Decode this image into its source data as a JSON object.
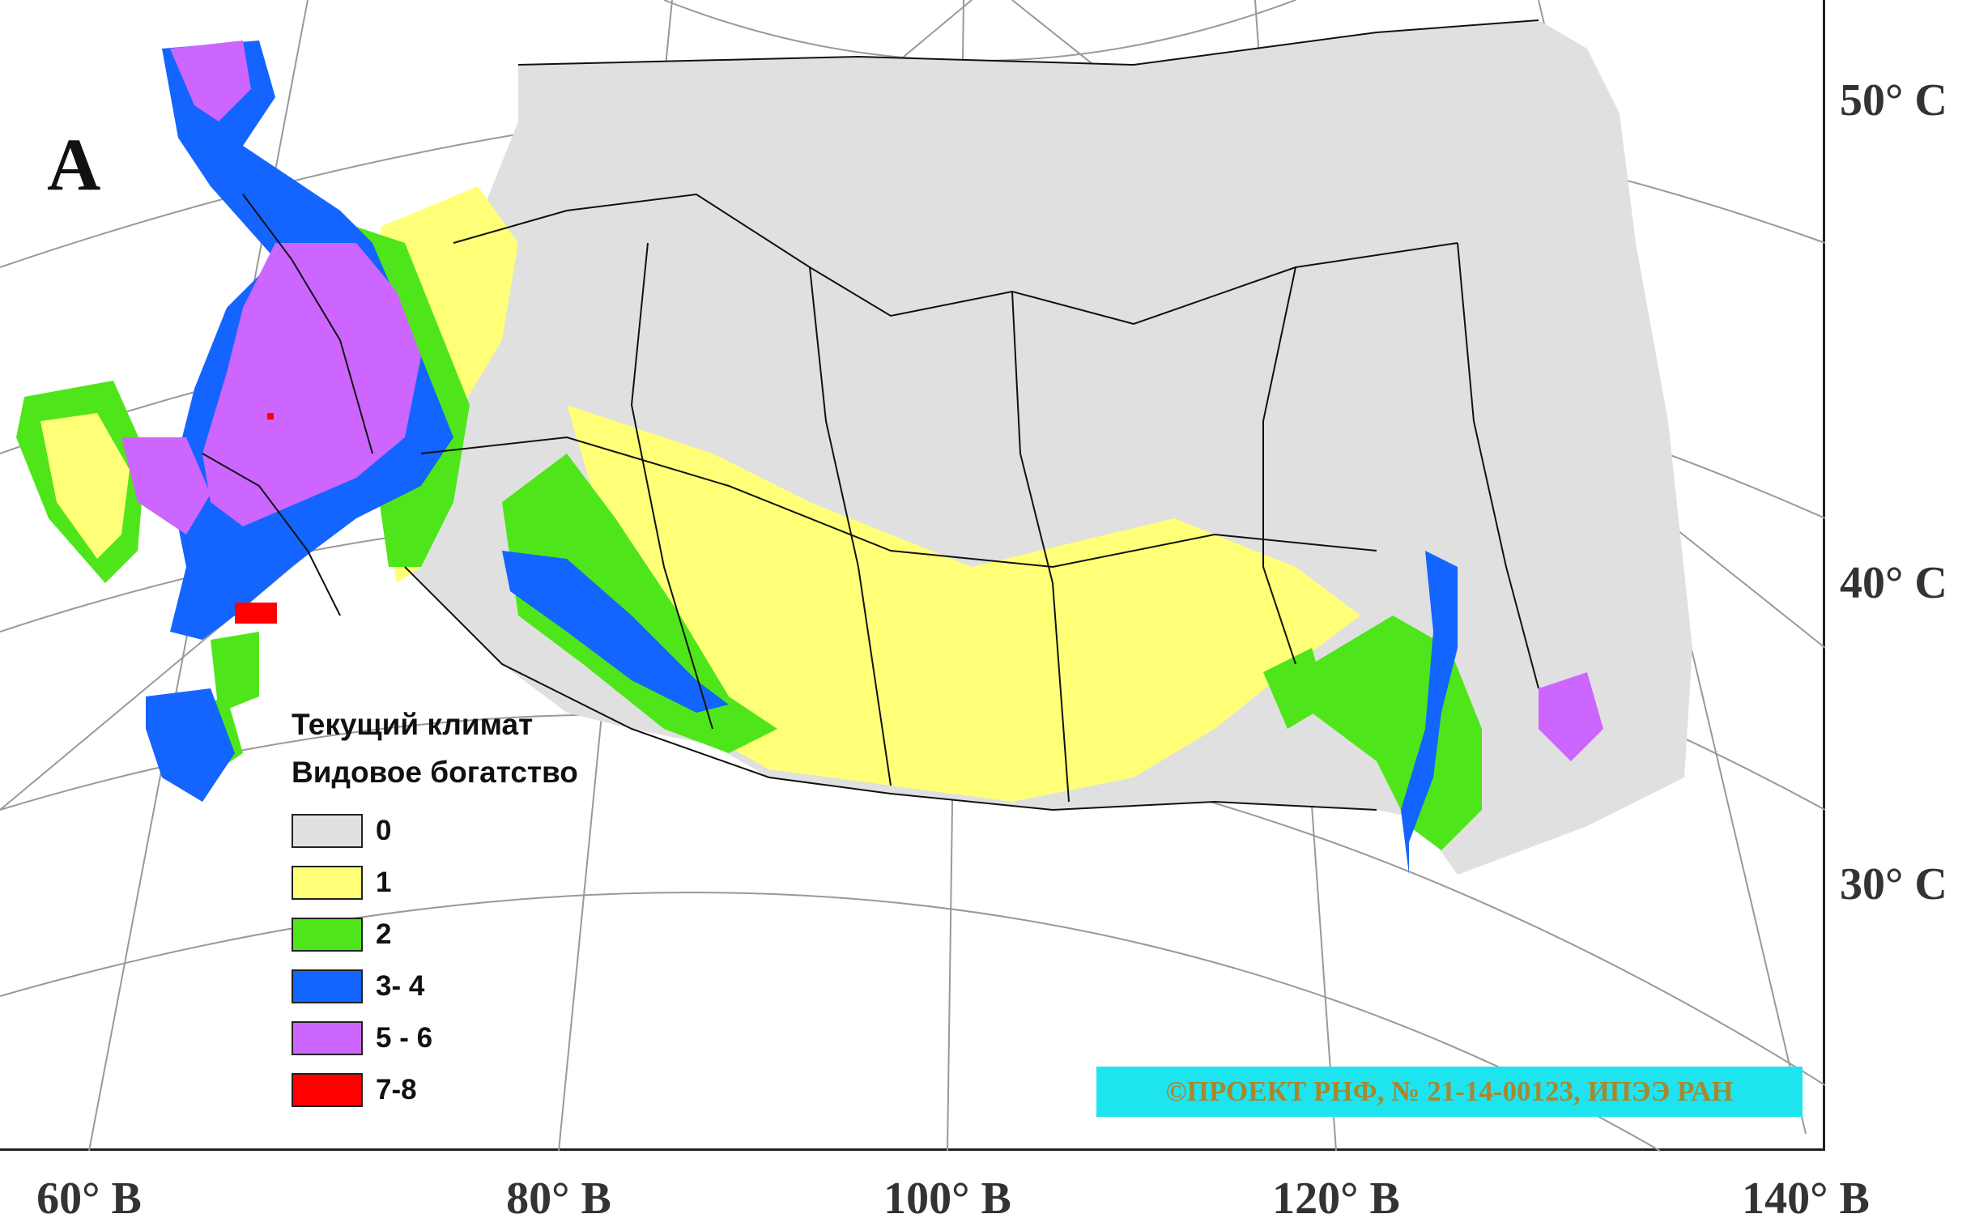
{
  "figure": {
    "panel_label": "А",
    "legend": {
      "title_line1": "Текущий климат",
      "title_line2": "Видовое богатство",
      "items": [
        {
          "label": "0",
          "color": "#e0e0e0"
        },
        {
          "label": "1",
          "color": "#ffff78"
        },
        {
          "label": "2",
          "color": "#4ee61a"
        },
        {
          "label": "3- 4",
          "color": "#1464ff"
        },
        {
          "label": "5 - 6",
          "color": "#cc66ff"
        },
        {
          "label": "7-8",
          "color": "#ff0000"
        }
      ]
    },
    "latitude_labels": [
      "50° С",
      "40° С",
      "30° С"
    ],
    "longitude_labels": [
      "60° В",
      "80° В",
      "100° В",
      "120° В",
      "140° В"
    ],
    "credit": "©ПРОЕКТ РНФ, № 21-14-00123, ИПЭЭ РАН"
  }
}
